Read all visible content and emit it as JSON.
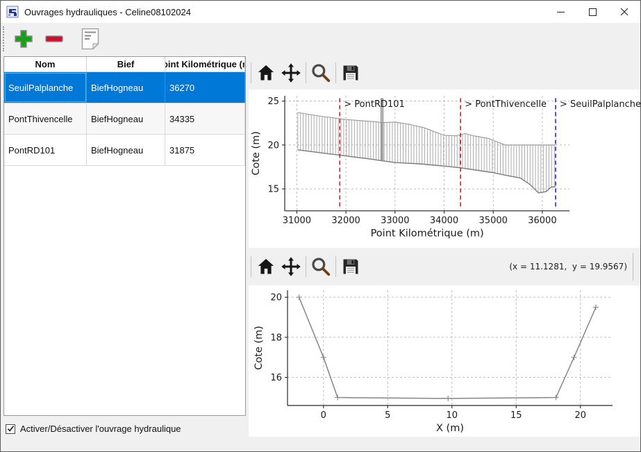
{
  "window": {
    "title": "Ouvrages hydrauliques - Celine08102024"
  },
  "main_toolbar": {
    "buttons": [
      {
        "name": "add",
        "icon": "plus-icon"
      },
      {
        "name": "remove",
        "icon": "minus-icon"
      },
      {
        "name": "notes",
        "icon": "document-icon"
      }
    ]
  },
  "table": {
    "headers": [
      "Nom",
      "Bief",
      "Point Kilométrique (m)"
    ],
    "rows": [
      {
        "nom": "SeuilPalplanche",
        "bief": "BiefHogneau",
        "pk": "36270",
        "selected": true
      },
      {
        "nom": "PontThivencelle",
        "bief": "BiefHogneau",
        "pk": "34335",
        "selected": false
      },
      {
        "nom": "PontRD101",
        "bief": "BiefHogneau",
        "pk": "31875",
        "selected": false
      }
    ],
    "selection_color": "#0078d7"
  },
  "checkbox": {
    "label": "Activer/Désactiver l'ouvrage hydraulique",
    "checked": true
  },
  "plot_toolbars": {
    "icons": [
      "home",
      "pan",
      "zoom",
      "save"
    ],
    "readout": "(x = 11.1281,  y = 19.9567)"
  },
  "colors": {
    "annotation_red": "#f01010",
    "annotation_blue": "#2222dd",
    "profile_gray": "#858585",
    "grid_gray": "#b5b5b5"
  },
  "chart_data": [
    {
      "name": "profil-en-long",
      "type": "line",
      "xlabel": "Point Kilométrique (m)",
      "ylabel": "Cote (m)",
      "xlim": [
        30754,
        36557
      ],
      "ylim": [
        12.5,
        25.6
      ],
      "xticks": [
        31000,
        32000,
        33000,
        34000,
        35000,
        36000
      ],
      "yticks": [
        15,
        20,
        25
      ],
      "grid": true,
      "series": [
        {
          "name": "fond-du-lit",
          "points": [
            [
              31020,
              19.45
            ],
            [
              31500,
              19.1
            ],
            [
              32000,
              18.75
            ],
            [
              32500,
              18.4
            ],
            [
              32735,
              18.2
            ],
            [
              33000,
              18.0
            ],
            [
              33500,
              17.85
            ],
            [
              34000,
              17.6
            ],
            [
              34335,
              17.4
            ],
            [
              34700,
              17.1
            ],
            [
              35000,
              16.85
            ],
            [
              35300,
              16.5
            ],
            [
              35550,
              16.25
            ],
            [
              35750,
              15.5
            ],
            [
              35920,
              14.55
            ],
            [
              36080,
              14.7
            ],
            [
              36180,
              15.2
            ],
            [
              36270,
              15.25
            ]
          ]
        },
        {
          "name": "crete-des-berges",
          "points": [
            [
              31020,
              23.7
            ],
            [
              31400,
              23.35
            ],
            [
              32000,
              22.9
            ],
            [
              32600,
              22.65
            ],
            [
              32735,
              22.55
            ],
            [
              33000,
              22.6
            ],
            [
              33300,
              22.35
            ],
            [
              33600,
              21.95
            ],
            [
              34000,
              21.1
            ],
            [
              34250,
              21.05
            ],
            [
              34430,
              21.3
            ],
            [
              34600,
              21.05
            ],
            [
              34900,
              20.75
            ],
            [
              35100,
              20.3
            ],
            [
              35250,
              20.0
            ],
            [
              36270,
              20.0
            ]
          ]
        }
      ],
      "hatch": {
        "from": 31020,
        "to": 36270,
        "step_m": 55
      },
      "spike": {
        "x": 32735,
        "half_width_m": 22,
        "top": 25.3
      },
      "annotations": [
        {
          "label": "> PontRD101",
          "x": 31875,
          "color": "#f01010"
        },
        {
          "label": "> PontThivencelle",
          "x": 34335,
          "color": "#f01010"
        },
        {
          "label": "> SeuilPalplanche",
          "x": 36270,
          "color": "#2222dd"
        }
      ]
    },
    {
      "name": "section-en-travers",
      "type": "line",
      "xlabel": "X (m)",
      "ylabel": "Cote (m)",
      "xlim": [
        -2.8,
        22.5
      ],
      "ylim": [
        14.6,
        20.35
      ],
      "xticks": [
        0,
        5,
        10,
        15,
        20
      ],
      "yticks": [
        16,
        18,
        20
      ],
      "grid": true,
      "marker": "plus",
      "series": [
        {
          "name": "section",
          "points": [
            [
              -1.9,
              20
            ],
            [
              0,
              17
            ],
            [
              1.1,
              15
            ],
            [
              9.7,
              14.95
            ],
            [
              18.1,
              15
            ],
            [
              19.5,
              17
            ],
            [
              21.2,
              19.5
            ]
          ]
        }
      ]
    }
  ]
}
